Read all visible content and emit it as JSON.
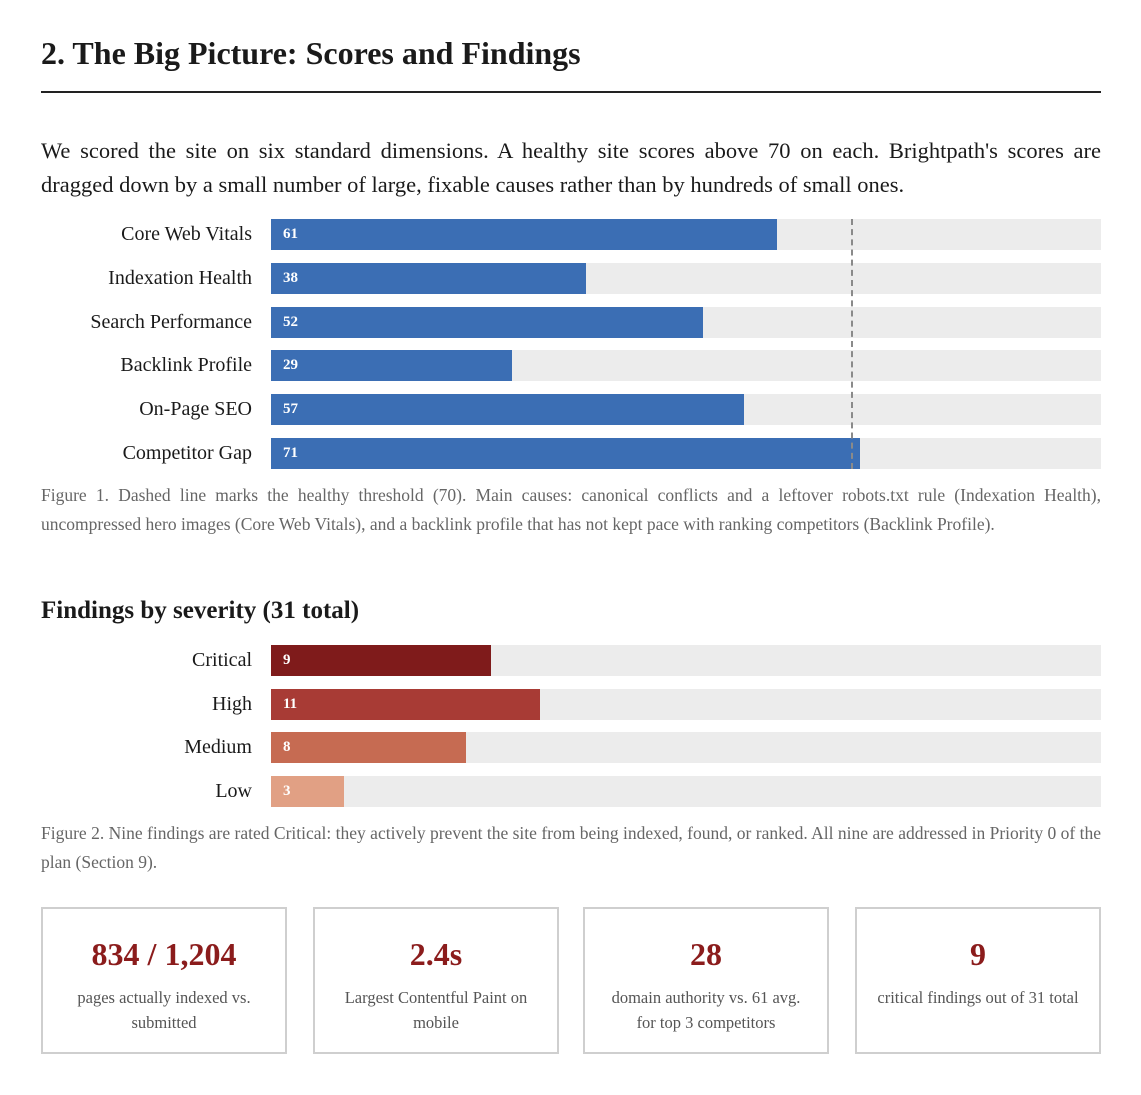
{
  "section_title": "2. The Big Picture: Scores and Findings",
  "intro": "We scored the site on six standard dimensions. A healthy site scores above 70 on each. Brightpath's scores are dragged down by a small number of large, fixable causes rather than by hundreds of small ones.",
  "figure1_caption": "Figure 1. Dashed line marks the healthy threshold (70). Main causes: canonical conflicts and a leftover robots.txt rule (Indexation Health), uncompressed hero images (Core Web Vitals), and a backlink profile that has not kept pace with ranking competitors (Backlink Profile).",
  "findings_title": "Findings by severity (31 total)",
  "figure2_caption": "Figure 2. Nine findings are rated Critical: they actively prevent the site from being indexed, found, or ranked. All nine are addressed in Priority 0 of the plan (Section 9).",
  "chart_data": [
    {
      "type": "bar",
      "orientation": "horizontal",
      "categories": [
        "Core Web Vitals",
        "Indexation Health",
        "Search Performance",
        "Backlink Profile",
        "On-Page SEO",
        "Competitor Gap"
      ],
      "values": [
        61,
        38,
        52,
        29,
        57,
        71
      ],
      "xlim": [
        0,
        100
      ],
      "threshold": 70,
      "bar_color": "#3b6eb4",
      "track_color": "#ececec",
      "grid": false
    },
    {
      "type": "bar",
      "orientation": "horizontal",
      "categories": [
        "Critical",
        "High",
        "Medium",
        "Low"
      ],
      "values": [
        9,
        11,
        8,
        3
      ],
      "xlim": [
        0,
        34
      ],
      "colors": [
        "#7f1b1b",
        "#a83b35",
        "#c66b52",
        "#e1a084"
      ],
      "track_color": "#ececec",
      "grid": false
    }
  ],
  "stats": [
    {
      "value": "834 / 1,204",
      "label": "pages actually indexed vs. submitted"
    },
    {
      "value": "2.4s",
      "label": "Largest Contentful Paint on mobile"
    },
    {
      "value": "28",
      "label": "domain authority vs. 61 avg. for top 3 competitors"
    },
    {
      "value": "9",
      "label": "critical findings out of 31 total"
    }
  ],
  "colors": {
    "accent": "#8b1c1c",
    "threshold_line": "#8a8a8a"
  }
}
